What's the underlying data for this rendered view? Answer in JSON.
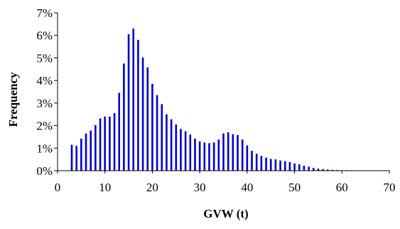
{
  "chart_data": {
    "type": "bar",
    "xlabel": "GVW (t)",
    "ylabel": "Frequency",
    "xlim": [
      0,
      70
    ],
    "ylim": [
      0,
      7
    ],
    "x_ticks": [
      "0",
      "10",
      "20",
      "30",
      "40",
      "50",
      "60",
      "70"
    ],
    "y_ticks": [
      "0%",
      "1%",
      "2%",
      "3%",
      "4%",
      "5%",
      "6%",
      "7%"
    ],
    "grid": false,
    "legend": "none",
    "bar_color": "#0000cc",
    "x": [
      3,
      4,
      5,
      6,
      7,
      8,
      9,
      10,
      11,
      12,
      13,
      14,
      15,
      16,
      17,
      18,
      19,
      20,
      21,
      22,
      23,
      24,
      25,
      26,
      27,
      28,
      29,
      30,
      31,
      32,
      33,
      34,
      35,
      36,
      37,
      38,
      39,
      40,
      41,
      42,
      43,
      44,
      45,
      46,
      47,
      48,
      49,
      50,
      51,
      52,
      53,
      54,
      55,
      56,
      57,
      58,
      59,
      60,
      61,
      62,
      63,
      64,
      65,
      66,
      67,
      68,
      69,
      70
    ],
    "values": [
      1.15,
      1.1,
      1.42,
      1.65,
      1.78,
      2.02,
      2.32,
      2.4,
      2.4,
      2.55,
      3.45,
      4.75,
      6.05,
      6.3,
      5.8,
      5.02,
      4.58,
      3.85,
      3.35,
      2.95,
      2.5,
      2.28,
      2.05,
      1.85,
      1.75,
      1.6,
      1.42,
      1.3,
      1.25,
      1.22,
      1.25,
      1.38,
      1.65,
      1.7,
      1.62,
      1.58,
      1.38,
      1.12,
      0.88,
      0.75,
      0.65,
      0.58,
      0.52,
      0.5,
      0.45,
      0.42,
      0.38,
      0.32,
      0.28,
      0.22,
      0.18,
      0.12,
      0.09,
      0.07,
      0.05,
      0.04,
      0.03,
      0.02,
      0.02,
      0.02,
      0.01,
      0.01,
      0.01,
      0.01,
      0.01,
      0.01,
      0.01,
      0.01
    ]
  }
}
